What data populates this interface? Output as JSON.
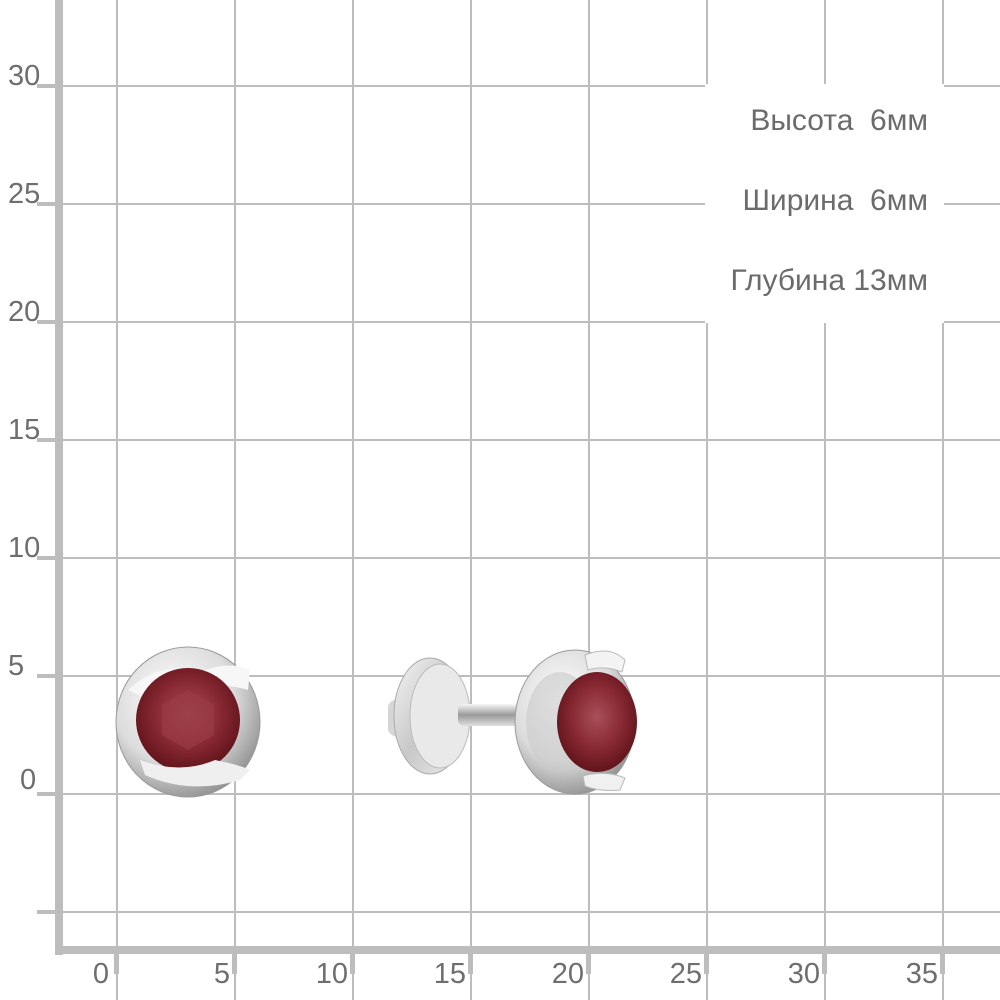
{
  "y_axis": {
    "ticks": [
      "30",
      "25",
      "20",
      "15",
      "10",
      "5",
      "0"
    ]
  },
  "x_axis": {
    "ticks": [
      "0",
      "5",
      "10",
      "15",
      "20",
      "25",
      "30",
      "35"
    ]
  },
  "dimensions": {
    "height": "Высота  6мм",
    "width": "Ширина  6мм",
    "depth": "Глубина 13мм"
  },
  "product": {
    "metal": "silver",
    "stone_color": "#7a1a24",
    "grid_color": "#bdbdbd",
    "text_color": "#6b6b6b"
  }
}
